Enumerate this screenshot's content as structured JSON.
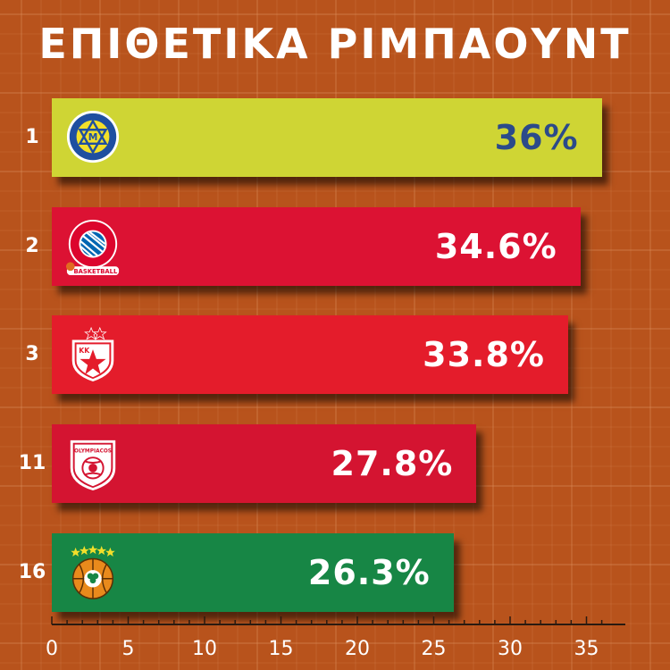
{
  "title": "ΕΠΙΘΕΤΙΚΑ ΡΙΜΠΑΟΥΝΤ",
  "colors": {
    "background": "#b8531c",
    "grid": "#d98a58",
    "maccabi_bar": "#cfd534",
    "maccabi_text": "#2b4a8a",
    "bayern_bar": "#dc1233",
    "crvena_bar": "#e41c2b",
    "olympiacos_bar": "#d41431",
    "panathinaikos_bar": "#178645",
    "value_text": "#ffffff"
  },
  "chart_data": {
    "type": "bar",
    "orientation": "horizontal",
    "title": "ΕΠΙΘΕΤΙΚΑ ΡΙΜΠΑΟΥΝΤ",
    "categories": [
      "1",
      "2",
      "3",
      "11",
      "16"
    ],
    "values": [
      36,
      34.6,
      33.8,
      27.8,
      26.3
    ],
    "value_labels": [
      "36%",
      "34.6%",
      "33.8%",
      "27.8%",
      "26.3%"
    ],
    "logos": [
      "maccabi-tel-aviv-logo",
      "bayern-munich-logo",
      "crvena-zvezda-logo",
      "olympiacos-logo",
      "panathinaikos-logo"
    ],
    "bar_colors": [
      "#cfd534",
      "#dc1233",
      "#e41c2b",
      "#d41431",
      "#178645"
    ],
    "label_colors": [
      "#2b4a8a",
      "#ffffff",
      "#ffffff",
      "#ffffff",
      "#ffffff"
    ],
    "x_ticks": [
      "0",
      "5",
      "10",
      "15",
      "20",
      "25",
      "30",
      "35"
    ],
    "xlim": [
      0,
      37.2
    ],
    "grid": true
  }
}
